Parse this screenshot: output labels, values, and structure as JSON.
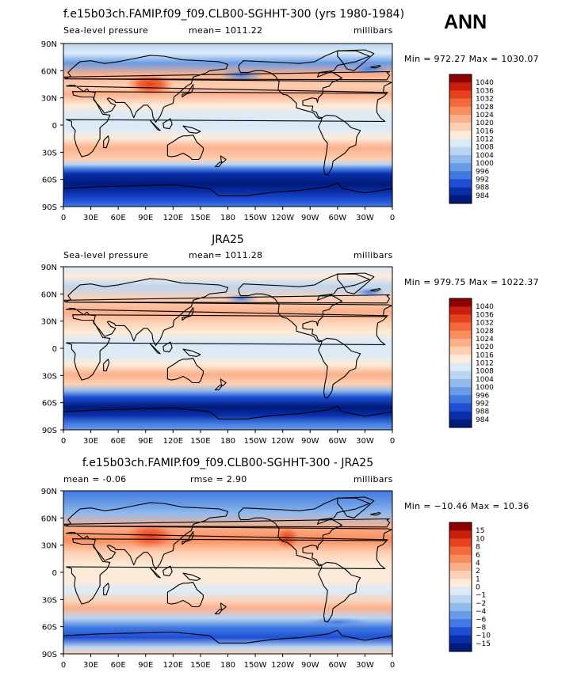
{
  "season": "ANN",
  "x_ticks": [
    "0",
    "30E",
    "60E",
    "90E",
    "120E",
    "150E",
    "180",
    "150W",
    "120W",
    "90W",
    "60W",
    "30W",
    "0"
  ],
  "y_ticks": [
    "90N",
    "60N",
    "30N",
    "0",
    "30S",
    "60S",
    "90S"
  ],
  "chart_data": [
    {
      "type": "heatmap",
      "title": "f.e15b03ch.FAMIP.f09_f09.CLB00-SGHHT-300 (yrs 1980-1984)",
      "left_label": "Sea-level pressure",
      "mean_text": "mean=  1011.22",
      "units": "millibars",
      "min_label": "Min = 972.27",
      "max_label": "Max = 1030.07",
      "xlim": [
        0,
        360
      ],
      "ylim": [
        -90,
        90
      ],
      "colorbar_levels": [
        "1040",
        "1036",
        "1032",
        "1028",
        "1024",
        "1020",
        "1016",
        "1012",
        "1008",
        "1004",
        "1000",
        "996",
        "992",
        "988",
        "984"
      ],
      "colors": [
        "#8b0000",
        "#c81e0c",
        "#e6421e",
        "#f26a3c",
        "#f88d5e",
        "#fbb08c",
        "#fdd0b3",
        "#fdebd9",
        "#dceaf8",
        "#bcd6f2",
        "#92bbec",
        "#6a9be6",
        "#4179e0",
        "#1e4fd4",
        "#0a2ea8",
        "#001a7a"
      ]
    },
    {
      "type": "heatmap",
      "title": "JRA25",
      "left_label": "Sea-level pressure",
      "mean_text": "mean=  1011.28",
      "units": "millibars",
      "min_label": "Min = 979.75",
      "max_label": "Max = 1022.37",
      "xlim": [
        0,
        360
      ],
      "ylim": [
        -90,
        90
      ],
      "colorbar_levels": [
        "1040",
        "1036",
        "1032",
        "1028",
        "1024",
        "1020",
        "1016",
        "1012",
        "1008",
        "1004",
        "1000",
        "996",
        "992",
        "988",
        "984"
      ],
      "colors": [
        "#8b0000",
        "#c81e0c",
        "#e6421e",
        "#f26a3c",
        "#f88d5e",
        "#fbb08c",
        "#fdd0b3",
        "#fdebd9",
        "#dceaf8",
        "#bcd6f2",
        "#92bbec",
        "#6a9be6",
        "#4179e0",
        "#1e4fd4",
        "#0a2ea8",
        "#001a7a"
      ]
    },
    {
      "type": "heatmap",
      "title": "f.e15b03ch.FAMIP.f09_f09.CLB00-SGHHT-300 - JRA25",
      "mean_text": "mean =    -0.06",
      "rmse_text": "rmse =    2.90",
      "units": "millibars",
      "min_label": "Min = −10.46",
      "max_label": "Max =  10.36",
      "xlim": [
        0,
        360
      ],
      "ylim": [
        -90,
        90
      ],
      "colorbar_levels": [
        "15",
        "10",
        "8",
        "6",
        "4",
        "2",
        "1",
        "0",
        "−1",
        "−2",
        "−4",
        "−6",
        "−8",
        "−10",
        "−15"
      ],
      "colors": [
        "#8b0000",
        "#c81e0c",
        "#e6421e",
        "#f26a3c",
        "#f88d5e",
        "#fbb08c",
        "#fdd0b3",
        "#fdebd9",
        "#dceaf8",
        "#bcd6f2",
        "#92bbec",
        "#6a9be6",
        "#4179e0",
        "#1e4fd4",
        "#0a2ea8",
        "#001a7a"
      ]
    }
  ]
}
